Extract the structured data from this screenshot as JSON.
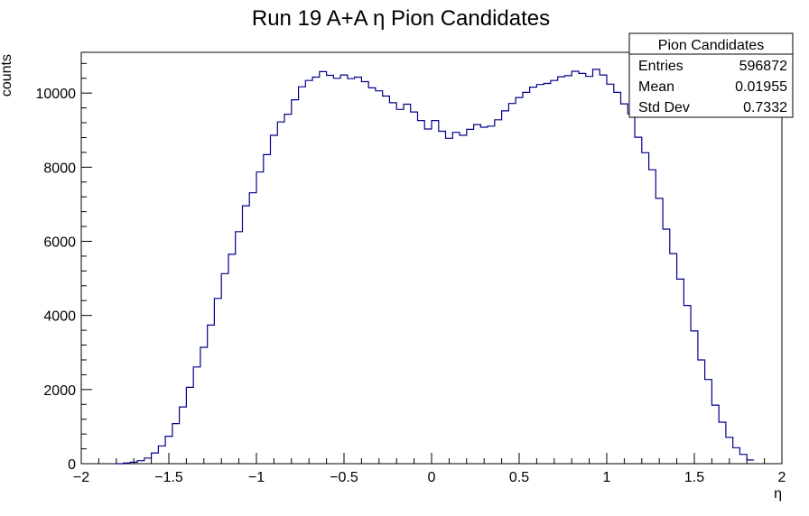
{
  "chart_data": {
    "type": "histogram",
    "title": "Run 19 A+A  η Pion Candidates",
    "xlabel": "η",
    "ylabel": "counts",
    "xlim": [
      -2,
      2
    ],
    "ylim": [
      0,
      11100
    ],
    "xticks": [
      -2,
      -1.5,
      -1,
      -0.5,
      0,
      0.5,
      1,
      1.5,
      2
    ],
    "xtick_labels": [
      "−2",
      "−1.5",
      "−1",
      "−0.5",
      "0",
      "0.5",
      "1",
      "1.5",
      "2"
    ],
    "yticks": [
      0,
      2000,
      4000,
      6000,
      8000,
      10000
    ],
    "ytick_labels": [
      "0",
      "2000",
      "4000",
      "6000",
      "8000",
      "10000"
    ],
    "bin_width": 0.04,
    "bin_low_edges": [
      -1.8,
      -1.76,
      -1.72,
      -1.68,
      -1.64,
      -1.6,
      -1.56,
      -1.52,
      -1.48,
      -1.44,
      -1.4,
      -1.36,
      -1.32,
      -1.28,
      -1.24,
      -1.2,
      -1.16,
      -1.12,
      -1.08,
      -1.04,
      -1.0,
      -0.96,
      -0.92,
      -0.88,
      -0.84,
      -0.8,
      -0.76,
      -0.72,
      -0.68,
      -0.64,
      -0.6,
      -0.56,
      -0.52,
      -0.48,
      -0.44,
      -0.4,
      -0.36,
      -0.32,
      -0.28,
      -0.24,
      -0.2,
      -0.16,
      -0.12,
      -0.08,
      -0.04,
      0.0,
      0.04,
      0.08,
      0.12,
      0.16,
      0.2,
      0.24,
      0.28,
      0.32,
      0.36,
      0.4,
      0.44,
      0.48,
      0.52,
      0.56,
      0.6,
      0.64,
      0.68,
      0.72,
      0.76,
      0.8,
      0.84,
      0.88,
      0.92,
      0.96,
      1.0,
      1.04,
      1.08,
      1.12,
      1.16,
      1.2,
      1.24,
      1.28,
      1.32,
      1.36,
      1.4,
      1.44,
      1.48,
      1.52,
      1.56,
      1.6,
      1.64,
      1.68,
      1.72,
      1.76,
      1.8
    ],
    "counts": [
      0,
      20,
      40,
      80,
      150,
      290,
      480,
      740,
      1080,
      1530,
      2060,
      2610,
      3140,
      3740,
      4460,
      5130,
      5650,
      6260,
      6960,
      7310,
      7870,
      8340,
      8860,
      9220,
      9430,
      9820,
      10170,
      10340,
      10430,
      10580,
      10480,
      10400,
      10490,
      10390,
      10430,
      10310,
      10140,
      10060,
      9920,
      9740,
      9560,
      9700,
      9490,
      9260,
      9030,
      9260,
      8970,
      8780,
      8940,
      8860,
      9020,
      9150,
      9080,
      9110,
      9280,
      9520,
      9720,
      9880,
      10020,
      10160,
      10230,
      10260,
      10340,
      10440,
      10470,
      10590,
      10530,
      10450,
      10640,
      10490,
      10240,
      10020,
      9710,
      9440,
      8810,
      8390,
      7930,
      7160,
      6330,
      5670,
      4980,
      4270,
      3580,
      2800,
      2270,
      1580,
      1120,
      710,
      430,
      250,
      100,
      30,
      10
    ],
    "series_color": "#00008b"
  },
  "stats_box": {
    "title": "Pion Candidates",
    "rows": [
      {
        "label": "Entries",
        "value": "596872"
      },
      {
        "label": "Mean",
        "value": "0.01955"
      },
      {
        "label": "Std Dev",
        "value": "0.7332"
      }
    ]
  }
}
